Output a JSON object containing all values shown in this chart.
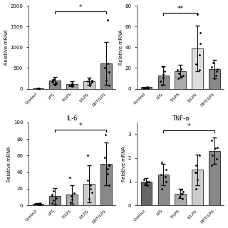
{
  "subplots": [
    {
      "title": "",
      "ylabel": "Relative mRNA",
      "ylim": [
        0,
        2000
      ],
      "yticks": [
        0,
        500,
        1000,
        1500,
        2000
      ],
      "categories": [
        "Control",
        "LPS",
        "T/LPS",
        "E/LPS",
        "DHT/LPS"
      ],
      "bar_means": [
        10,
        200,
        120,
        190,
        610
      ],
      "bar_errors": [
        5,
        90,
        55,
        85,
        520
      ],
      "bar_colors": [
        "#666666",
        "#888888",
        "#aaaaaa",
        "#cccccc",
        "#888888"
      ],
      "dots": [
        [
          3,
          5,
          8,
          12,
          10,
          7
        ],
        [
          100,
          140,
          190,
          240,
          210,
          170
        ],
        [
          60,
          75,
          95,
          125,
          105,
          85
        ],
        [
          80,
          130,
          180,
          230,
          200,
          160
        ],
        [
          80,
          200,
          400,
          620,
          1660,
          500
        ]
      ],
      "sig_pairs": [
        [
          1,
          4
        ]
      ],
      "sig_labels": [
        "*"
      ],
      "sig_y": [
        1860
      ]
    },
    {
      "title": "",
      "ylabel": "Relative mRNA",
      "ylim": [
        0,
        80
      ],
      "yticks": [
        0,
        20,
        40,
        60,
        80
      ],
      "categories": [
        "Control",
        "LPS",
        "T/LPS",
        "E/LPS",
        "DHT/LPS"
      ],
      "bar_means": [
        1.5,
        13,
        17,
        39,
        19
      ],
      "bar_errors": [
        0.5,
        9,
        6,
        22,
        9
      ],
      "bar_colors": [
        "#666666",
        "#888888",
        "#aaaaaa",
        "#dddddd",
        "#888888"
      ],
      "dots": [
        [
          0.5,
          0.8,
          1.2,
          1.5,
          1.0,
          0.6
        ],
        [
          4,
          7,
          11,
          17,
          21,
          14
        ],
        [
          10,
          12,
          15,
          19,
          18,
          13
        ],
        [
          18,
          24,
          33,
          44,
          54,
          72
        ],
        [
          10,
          13,
          17,
          21,
          25,
          19
        ]
      ],
      "sig_pairs": [
        [
          1,
          3
        ]
      ],
      "sig_labels": [
        "**"
      ],
      "sig_y": [
        73
      ]
    },
    {
      "title": "IL-6",
      "ylabel": "Relative mRNA",
      "ylim": [
        0,
        100
      ],
      "yticks": [
        0,
        20,
        40,
        60,
        80,
        100
      ],
      "categories": [
        "Control",
        "LPS",
        "T/LPS",
        "E/LPS",
        "DHT/LPS"
      ],
      "bar_means": [
        2,
        11,
        13,
        26,
        50
      ],
      "bar_errors": [
        1,
        10,
        11,
        22,
        26
      ],
      "bar_colors": [
        "#666666",
        "#888888",
        "#aaaaaa",
        "#cccccc",
        "#888888"
      ],
      "dots": [
        [
          1,
          1.5,
          2,
          2.5,
          2.0,
          1.5
        ],
        [
          3,
          6,
          9,
          13,
          17,
          11
        ],
        [
          4,
          7,
          11,
          15,
          34,
          11
        ],
        [
          8,
          16,
          24,
          30,
          60,
          20
        ],
        [
          24,
          38,
          48,
          58,
          85,
          44
        ]
      ],
      "sig_pairs": [
        [
          1,
          4
        ]
      ],
      "sig_labels": [
        "*"
      ],
      "sig_y": [
        91
      ]
    },
    {
      "title": "TNF-α",
      "ylabel": "Relative mRNA",
      "ylim": [
        0,
        3.5
      ],
      "yticks": [
        0,
        1,
        2,
        3
      ],
      "categories": [
        "Control",
        "LPS",
        "T/LPS",
        "E/LPS",
        "DHT/LPS"
      ],
      "bar_means": [
        1.0,
        1.3,
        0.5,
        1.5,
        2.3
      ],
      "bar_errors": [
        0.15,
        0.45,
        0.2,
        0.65,
        0.55
      ],
      "bar_colors": [
        "#666666",
        "#888888",
        "#aaaaaa",
        "#cccccc",
        "#888888"
      ],
      "dots": [
        [
          0.85,
          0.92,
          1.0,
          1.08,
          1.0,
          0.92
        ],
        [
          0.7,
          1.0,
          1.2,
          1.5,
          1.8,
          1.3
        ],
        [
          0.28,
          0.38,
          0.5,
          0.58,
          0.68,
          0.48
        ],
        [
          0.7,
          1.1,
          1.4,
          1.7,
          2.1,
          1.4
        ],
        [
          1.7,
          1.95,
          2.1,
          2.4,
          2.75,
          2.45
        ]
      ],
      "sig_pairs": [
        [
          1,
          4
        ]
      ],
      "sig_labels": [
        "*"
      ],
      "sig_y": [
        3.15
      ]
    }
  ]
}
